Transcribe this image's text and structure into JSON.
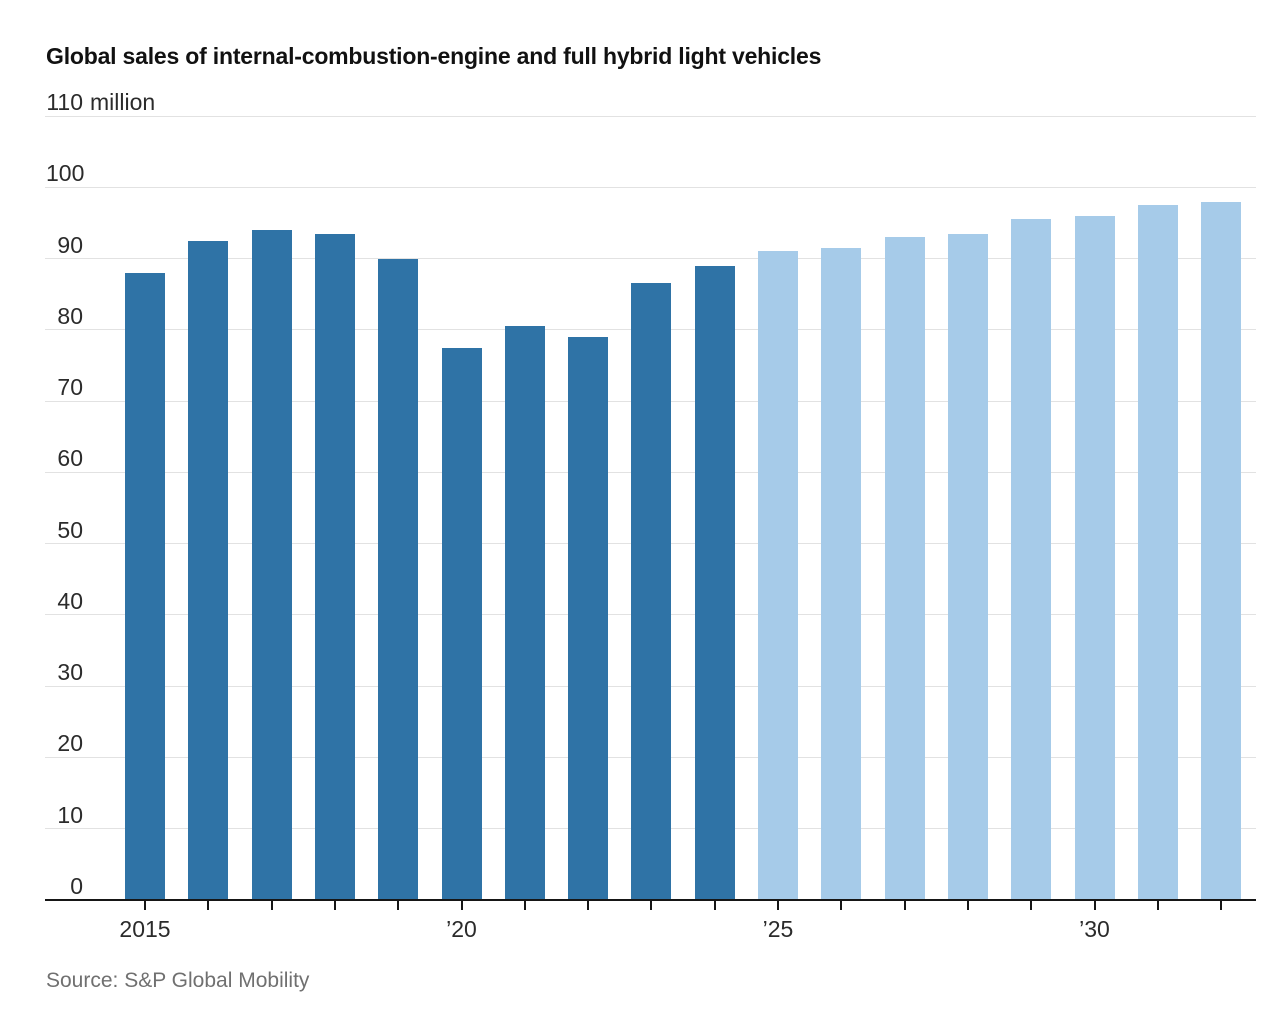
{
  "chart_data": {
    "type": "bar",
    "title": "Global sales of internal-combustion-engine and full hybrid light vehicles",
    "unit_label": "million",
    "categories": [
      "2015",
      "2016",
      "2017",
      "2018",
      "2019",
      "2020",
      "2021",
      "2022",
      "2023",
      "2024",
      "2025",
      "2026",
      "2027",
      "2028",
      "2029",
      "2030",
      "2031",
      "2032"
    ],
    "bars": [
      {
        "year": "2015",
        "value": 88,
        "phase": "historical"
      },
      {
        "year": "2016",
        "value": 92.5,
        "phase": "historical"
      },
      {
        "year": "2017",
        "value": 94,
        "phase": "historical"
      },
      {
        "year": "2018",
        "value": 93.5,
        "phase": "historical"
      },
      {
        "year": "2019",
        "value": 90,
        "phase": "historical"
      },
      {
        "year": "2020",
        "value": 77.5,
        "phase": "historical"
      },
      {
        "year": "2021",
        "value": 80.5,
        "phase": "historical"
      },
      {
        "year": "2022",
        "value": 79,
        "phase": "historical"
      },
      {
        "year": "2023",
        "value": 86.5,
        "phase": "historical"
      },
      {
        "year": "2024",
        "value": 89,
        "phase": "historical"
      },
      {
        "year": "2025",
        "value": 91,
        "phase": "forecast"
      },
      {
        "year": "2026",
        "value": 91.5,
        "phase": "forecast"
      },
      {
        "year": "2027",
        "value": 93,
        "phase": "forecast"
      },
      {
        "year": "2028",
        "value": 93.5,
        "phase": "forecast"
      },
      {
        "year": "2029",
        "value": 95.5,
        "phase": "forecast"
      },
      {
        "year": "2030",
        "value": 96,
        "phase": "forecast"
      },
      {
        "year": "2031",
        "value": 97.5,
        "phase": "forecast"
      },
      {
        "year": "2032",
        "value": 98,
        "phase": "forecast"
      }
    ],
    "series": [
      {
        "name": "historical",
        "color": "#2f73a6"
      },
      {
        "name": "forecast",
        "color": "#a6cbe9"
      }
    ],
    "ylim": [
      0,
      110
    ],
    "y_ticks": [
      0,
      10,
      20,
      30,
      40,
      50,
      60,
      70,
      80,
      90,
      100,
      110
    ],
    "y_tick_labels": [
      "0",
      "10",
      "20",
      "30",
      "40",
      "50",
      "60",
      "70",
      "80",
      "90",
      "100",
      "110"
    ],
    "y_top_suffix": "million",
    "x_tick_labels": [
      {
        "year": "2015",
        "label": "2015"
      },
      {
        "year": "2020",
        "label": "’20"
      },
      {
        "year": "2025",
        "label": "’25"
      },
      {
        "year": "2030",
        "label": "’30"
      }
    ],
    "grid": true,
    "legend": "none"
  },
  "footer": {
    "source": "Source: S&P Global Mobility"
  },
  "colors": {
    "historical_bar": "#2f73a6",
    "forecast_bar": "#a6cbe9",
    "gridline": "#e2e2e2",
    "axis": "#161616",
    "title_text": "#111111",
    "axis_label_text": "#2b2b2b",
    "source_text": "#707070",
    "background": "#ffffff"
  }
}
